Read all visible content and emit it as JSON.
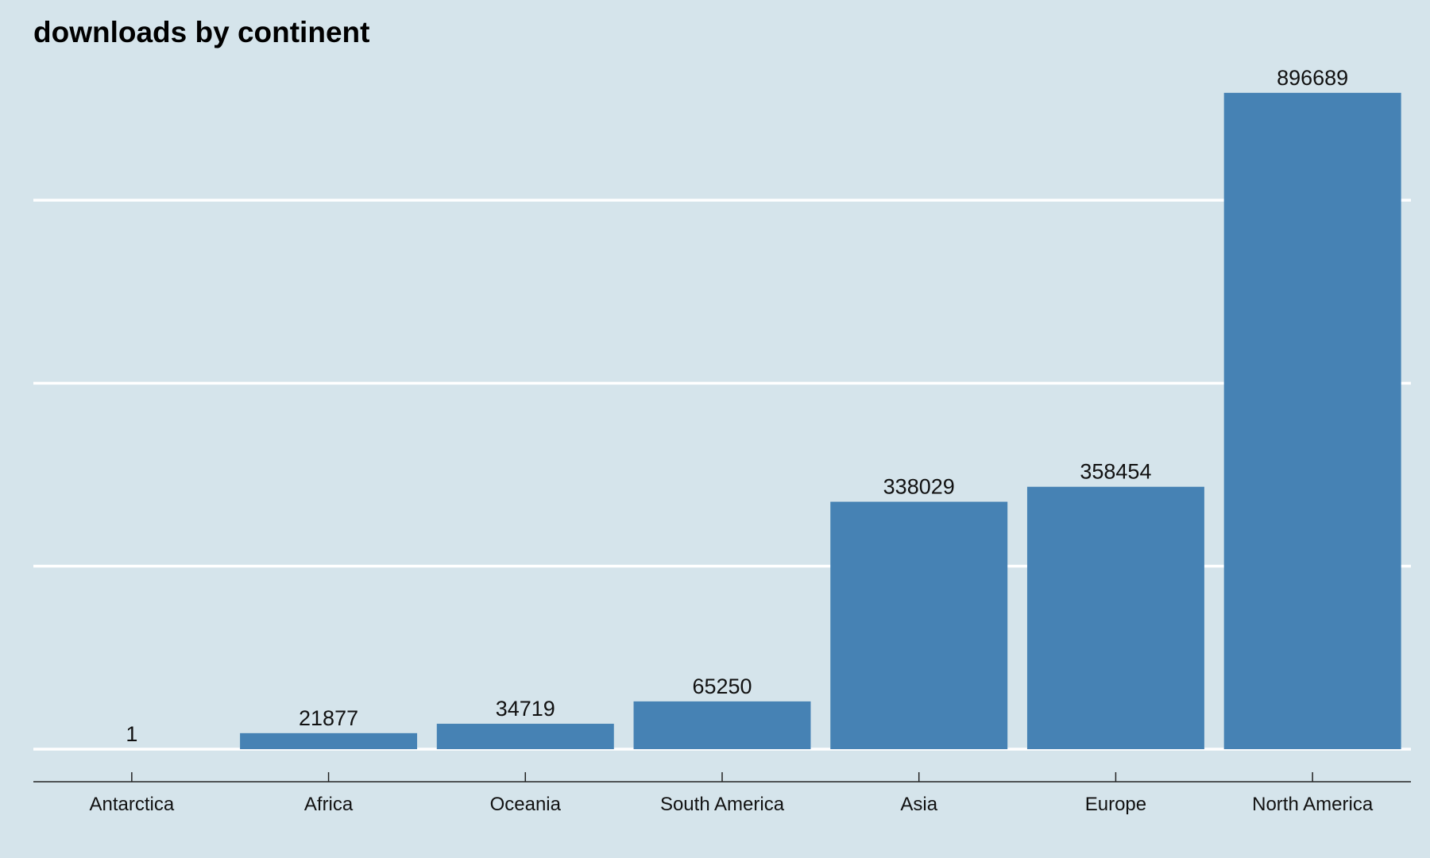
{
  "chart_data": {
    "type": "bar",
    "title": "downloads by continent",
    "xlabel": "",
    "ylabel": "",
    "categories": [
      "Antarctica",
      "Africa",
      "Oceania",
      "South America",
      "Asia",
      "Europe",
      "North America"
    ],
    "values": [
      1,
      21877,
      34719,
      65250,
      338029,
      358454,
      896689
    ],
    "data_labels": [
      "1",
      "21877",
      "34719",
      "65250",
      "338029",
      "358454",
      "896689"
    ],
    "ylim": [
      0,
      900000
    ],
    "y_gridlines": [
      0,
      250000,
      500000,
      750000
    ],
    "y_tick_labels_shown": false,
    "grid": true,
    "legend": "none",
    "colors": {
      "background": "#d5e4eb",
      "bar": "#4682b4",
      "gridline": "#ffffff",
      "axis": "#222222"
    }
  }
}
